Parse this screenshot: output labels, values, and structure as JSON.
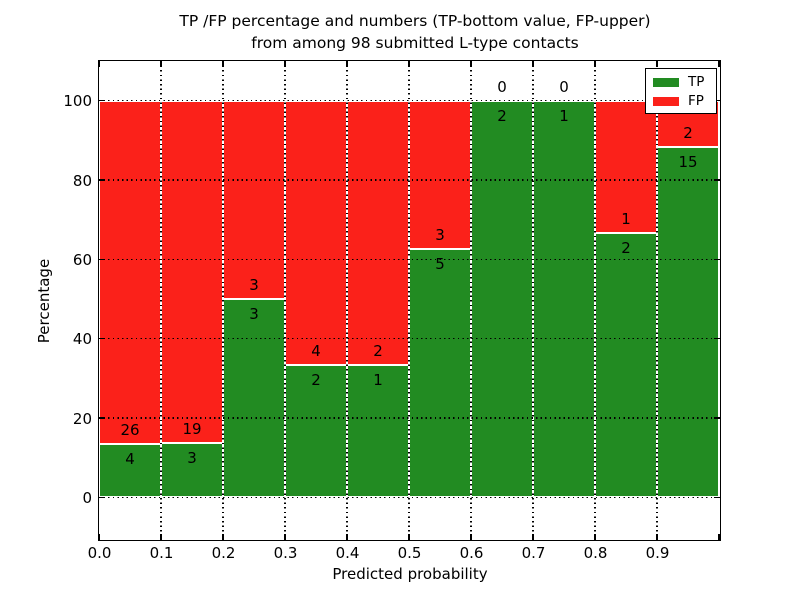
{
  "chart_data": {
    "type": "bar",
    "stacked": true,
    "orientation": "vertical",
    "title_line1": "TP /FP percentage and numbers (TP-bottom value, FP-upper)",
    "title_line2": "from among 98 submitted L-type contacts",
    "xlabel": "Predicted probability",
    "ylabel": "Percentage",
    "total_submitted_contacts": 98,
    "bin_edges": [
      0.0,
      0.1,
      0.2,
      0.3,
      0.4,
      0.5,
      0.6,
      0.7,
      0.8,
      0.9,
      1.0
    ],
    "series": [
      {
        "name": "TP",
        "color": "#228b22",
        "counts": [
          4,
          3,
          3,
          2,
          1,
          5,
          2,
          1,
          2,
          15
        ],
        "percent": [
          13.33,
          13.64,
          50.0,
          33.33,
          33.33,
          62.5,
          100.0,
          100.0,
          66.67,
          88.24
        ]
      },
      {
        "name": "FP",
        "color": "#fb211a",
        "counts": [
          26,
          19,
          3,
          4,
          2,
          3,
          0,
          0,
          1,
          2
        ],
        "percent": [
          86.67,
          86.36,
          50.0,
          66.67,
          66.67,
          37.5,
          0.0,
          0.0,
          33.33,
          11.76
        ]
      }
    ],
    "annotation_note": "FP count printed above TP/FP boundary, TP count below it",
    "x_tick_values": [
      0.0,
      0.1,
      0.2,
      0.3,
      0.4,
      0.5,
      0.6,
      0.7,
      0.8,
      0.9
    ],
    "x_tick_labels": [
      "0.0",
      "0.1",
      "0.2",
      "0.3",
      "0.4",
      "0.5",
      "0.6",
      "0.7",
      "0.8",
      "0.9"
    ],
    "y_tick_values": [
      0,
      20,
      40,
      60,
      80,
      100
    ],
    "y_tick_labels": [
      "0",
      "20",
      "40",
      "60",
      "80",
      "100"
    ],
    "xlim": [
      0.0,
      1.0
    ],
    "ylim": [
      -10.5,
      110
    ],
    "grid": "dotted",
    "grid_color": "#000000",
    "bar_edge_color": "#ffffff",
    "legend": {
      "position": "upper right",
      "entries": [
        {
          "label": "TP",
          "color": "#228b22"
        },
        {
          "label": "FP",
          "color": "#fb211a"
        }
      ]
    }
  }
}
